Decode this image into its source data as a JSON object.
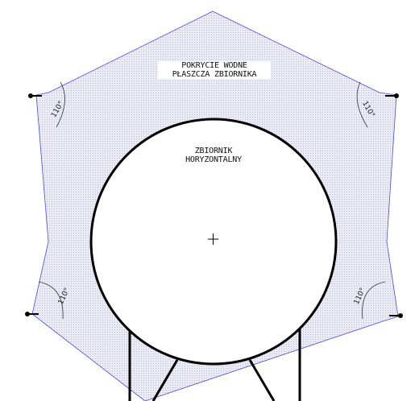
{
  "labels": {
    "coverage_line1": "POKRYCIE WODNE",
    "coverage_line2": "PŁASZCZA ZBIORNIKA",
    "tank_line1": "ZBIORNIK",
    "tank_line2": "HORYZONTALNY"
  },
  "angles": {
    "top_left": "110°",
    "top_right": "110°",
    "bottom_left": "110°",
    "bottom_right": "110°"
  },
  "colors": {
    "coverage_outline": "#4b4bd8",
    "coverage_fill": "#e6e6f4",
    "tank_outline": "#000000",
    "support_outline": "#000000"
  }
}
